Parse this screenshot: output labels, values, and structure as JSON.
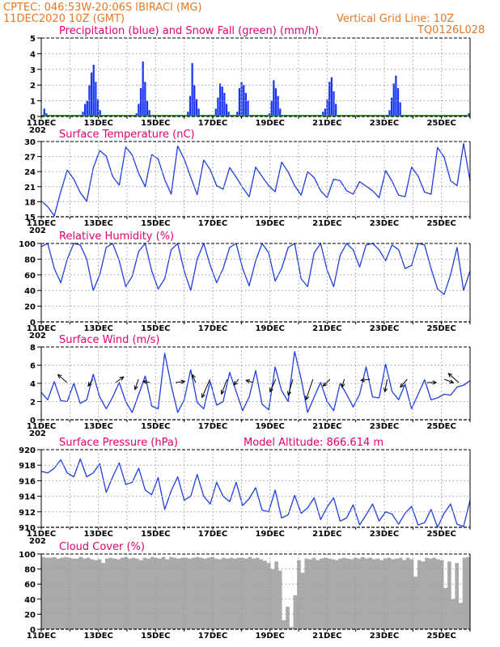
{
  "header": {
    "line1": "CPTEC:   046:53W-20:06S   IBIRACI (MG)",
    "line2": "11DEC2020 10Z (GMT)",
    "grid_note": "Vertical Grid Line: 10Z",
    "run_code": "TQ0126L028",
    "altitude_label": "Model Altitude: 866.614 m"
  },
  "colors": {
    "header": "#e87722",
    "title": "#e0006e",
    "series_blue": "#1f3fe0",
    "bars_blue": "#1a35f5",
    "snow_green": "#19a319",
    "cloud_gray": "#aaaaaa",
    "grid": "#9a9a9a"
  },
  "x_axis": {
    "day_labels": [
      "11DEC",
      "13DEC",
      "15DEC",
      "17DEC",
      "19DEC",
      "21DEC",
      "23DEC",
      "25DEC"
    ],
    "year_fragment": "202",
    "n_days": 15
  },
  "chart_data": [
    {
      "id": "precip",
      "type": "bar",
      "title": "Precipitation (blue) and Snow Fall (green) (mm/h)",
      "ylim": [
        0,
        5
      ],
      "yticks": [
        0,
        1,
        2,
        3,
        4,
        5
      ],
      "series": [
        {
          "name": "Precipitation",
          "color": "#1a35f5",
          "values": [
            0,
            0.5,
            0.2,
            0,
            0,
            0,
            0,
            0,
            0,
            0,
            0,
            0,
            0,
            0,
            0,
            0,
            0,
            0,
            0,
            0.3,
            0.8,
            1,
            2,
            2.8,
            3.3,
            2.2,
            1.1,
            0.4,
            0,
            0,
            0,
            0,
            0,
            0,
            0,
            0,
            0,
            0,
            0,
            0,
            0,
            0,
            0,
            0,
            0.2,
            0.8,
            1.8,
            3.5,
            2.2,
            1,
            0.4,
            0,
            0,
            0,
            0,
            0,
            0,
            0,
            0,
            0,
            0,
            0,
            0,
            0,
            0,
            0,
            0,
            0,
            0.3,
            1.3,
            3.4,
            2,
            1.1,
            0.5,
            0,
            0,
            0,
            0,
            0,
            0,
            0,
            0.5,
            1.2,
            2.1,
            1.9,
            1.5,
            0.8,
            0.3,
            0,
            0,
            0,
            0.3,
            1.8,
            2.2,
            2,
            1.5,
            1,
            0,
            0,
            0,
            0,
            0,
            0,
            0,
            0,
            0,
            0.2,
            1,
            2.3,
            1.8,
            1.3,
            0.5,
            0,
            0,
            0,
            0,
            0,
            0,
            0,
            0,
            0,
            0,
            0,
            0,
            0,
            0,
            0,
            0,
            0,
            0,
            0,
            0.3,
            0.5,
            1.1,
            2.2,
            2.5,
            1.6,
            0.8,
            0,
            0,
            0,
            0,
            0,
            0,
            0,
            0,
            0,
            0,
            0,
            0,
            0,
            0,
            0,
            0,
            0,
            0,
            0,
            0,
            0,
            0,
            0,
            0,
            0.4,
            1.2,
            2.1,
            2.6,
            1.8,
            0.9,
            0,
            0,
            0,
            0,
            0,
            0,
            0,
            0,
            0,
            0,
            0,
            0,
            0,
            0,
            0,
            0,
            0,
            0,
            0,
            0,
            0,
            0,
            0,
            0,
            0,
            0,
            0,
            0,
            0,
            0,
            0,
            0.2
          ]
        },
        {
          "name": "Snow Fall",
          "color": "#19a319",
          "values": [
            0,
            0,
            0,
            0,
            0,
            0,
            0,
            0,
            0,
            0,
            0,
            0,
            0,
            0,
            0
          ]
        }
      ]
    },
    {
      "id": "temp",
      "type": "line",
      "title": "Surface Temperature (nC)",
      "ylim": [
        15,
        30
      ],
      "yticks": [
        15,
        18,
        21,
        24,
        27,
        30
      ],
      "series": [
        {
          "name": "Temperature",
          "values": [
            18.2,
            17,
            15.2,
            20,
            24.3,
            22.5,
            19.8,
            18.1,
            24.7,
            28.2,
            27.1,
            23,
            21.3,
            28.9,
            27.3,
            23.6,
            21,
            27.4,
            26.5,
            22.4,
            19.5,
            29.1,
            26.5,
            22.9,
            19.4,
            26.3,
            24.4,
            21.2,
            20.5,
            24.8,
            22.9,
            20.8,
            19,
            24.9,
            23,
            21.2,
            20,
            25.9,
            23.9,
            21.2,
            19.3,
            24,
            22.8,
            20.2,
            18.8,
            22.5,
            22.2,
            20.2,
            19.5,
            22,
            21.1,
            20.2,
            18.8,
            24.2,
            22.1,
            19.3,
            19,
            24.9,
            23.1,
            19.9,
            19.5,
            28.8,
            26.9,
            22.2,
            21.2,
            29.6,
            22.1
          ]
        }
      ]
    },
    {
      "id": "rh",
      "type": "line",
      "title": "Relative Humidity (%)",
      "ylim": [
        0,
        100
      ],
      "yticks": [
        0,
        20,
        40,
        60,
        80,
        100
      ],
      "series": [
        {
          "name": "Relative Humidity",
          "values": [
            96,
            100,
            68,
            50,
            80,
            100,
            98,
            80,
            40,
            60,
            95,
            100,
            78,
            45,
            58,
            90,
            100,
            65,
            42,
            55,
            92,
            100,
            65,
            40,
            80,
            100,
            72,
            50,
            68,
            95,
            100,
            68,
            46,
            78,
            100,
            88,
            52,
            68,
            95,
            100,
            55,
            45,
            88,
            100,
            66,
            45,
            85,
            100,
            92,
            70,
            98,
            100,
            92,
            78,
            98,
            92,
            68,
            72,
            100,
            98,
            68,
            42,
            35,
            60,
            95,
            40,
            65
          ]
        }
      ]
    },
    {
      "id": "wind",
      "type": "line",
      "title": "Surface Wind (m/s)",
      "ylim": [
        0,
        8
      ],
      "yticks": [
        0,
        2,
        4,
        6,
        8
      ],
      "series": [
        {
          "name": "Wind speed",
          "values": [
            3,
            2.2,
            4.2,
            2.1,
            2,
            4,
            1.8,
            2.2,
            5,
            2.5,
            1.2,
            2.5,
            4.1,
            2,
            0.8,
            2.8,
            4.8,
            1.5,
            1.2,
            7.3,
            3.8,
            0.8,
            2.2,
            5.5,
            1.9,
            1.2,
            4.2,
            1.6,
            2,
            5.2,
            3.1,
            1,
            2.5,
            5.4,
            1.7,
            1.1,
            5.8,
            3.2,
            2,
            7.5,
            4.5,
            0.8,
            2.5,
            4.1,
            2,
            1,
            4,
            2.8,
            1.4,
            2.8,
            5.8,
            2.5,
            2.4,
            6.1,
            3.1,
            2.2,
            3.9,
            1.2,
            2.8,
            4.4,
            2.2,
            2.4,
            2.8,
            2.7,
            3.6,
            3.8,
            4.3
          ]
        }
      ],
      "arrows": [
        {
          "x": 0.9,
          "u": -0.8,
          "v": 0.7
        },
        {
          "x": 1.8,
          "u": -0.4,
          "v": -0.6
        },
        {
          "x": 2.6,
          "u": 0.7,
          "v": 0.5
        },
        {
          "x": 3.4,
          "u": -0.3,
          "v": -0.9
        },
        {
          "x": 3.8,
          "u": -0.6,
          "v": 0.1
        },
        {
          "x": 4.7,
          "u": 0.8,
          "v": 0.1
        },
        {
          "x": 5.4,
          "u": -0.3,
          "v": 0.7
        },
        {
          "x": 5.9,
          "u": -0.7,
          "v": -1.6
        },
        {
          "x": 6.5,
          "u": -0.5,
          "v": -1.3
        },
        {
          "x": 6.9,
          "u": -0.4,
          "v": -0.5
        },
        {
          "x": 7.4,
          "u": -0.6,
          "v": 0.2
        },
        {
          "x": 8.2,
          "u": -0.5,
          "v": -1.1
        },
        {
          "x": 8.8,
          "u": -0.4,
          "v": -1.4
        },
        {
          "x": 9.5,
          "u": -0.6,
          "v": -1.8
        },
        {
          "x": 10.1,
          "u": -0.6,
          "v": -0.6
        },
        {
          "x": 10.6,
          "u": -0.2,
          "v": -0.7
        },
        {
          "x": 11.5,
          "u": -0.8,
          "v": -0.1
        },
        {
          "x": 12.1,
          "u": -0.2,
          "v": -1.1
        },
        {
          "x": 12.8,
          "u": -0.6,
          "v": -0.7
        },
        {
          "x": 13.5,
          "u": 0.8,
          "v": 0
        },
        {
          "x": 14.1,
          "u": 0.8,
          "v": -0.3
        },
        {
          "x": 14.6,
          "u": -0.9,
          "v": 0.8
        }
      ]
    },
    {
      "id": "press",
      "type": "line",
      "title": "Surface Pressure (hPa)",
      "ylim": [
        910,
        920
      ],
      "yticks": [
        910,
        912,
        914,
        916,
        918,
        920
      ],
      "series": [
        {
          "name": "Surface Pressure",
          "values": [
            917.2,
            917,
            917.6,
            918.7,
            917,
            916.5,
            918.8,
            916.5,
            917,
            918.2,
            914.5,
            916.5,
            918.3,
            915.5,
            915.8,
            917.6,
            914.8,
            914.2,
            916.4,
            912.3,
            914.7,
            916.5,
            913.5,
            914,
            916.8,
            914,
            913,
            915.8,
            914,
            913.3,
            915.8,
            912.8,
            913.7,
            915.1,
            912.2,
            912,
            914.8,
            911.2,
            911.6,
            914.1,
            911.8,
            912.5,
            913.8,
            911,
            912.6,
            913.8,
            910.8,
            911.2,
            912.9,
            910.3,
            911.6,
            913,
            910.8,
            912,
            911.7,
            910.4,
            911.8,
            912.7,
            910.3,
            910.6,
            912.3,
            910,
            911.8,
            913,
            910.4,
            910.1,
            913.5
          ]
        }
      ]
    },
    {
      "id": "cloud",
      "type": "area",
      "title": "Cloud Cover (%)",
      "ylim": [
        0,
        100
      ],
      "yticks": [
        0,
        20,
        40,
        60,
        80,
        100
      ],
      "series": [
        {
          "name": "Cloud Cover",
          "values": [
            96,
            95,
            95,
            96,
            94,
            95,
            96,
            95,
            94,
            94,
            96,
            94,
            95,
            93,
            92,
            93,
            88,
            94,
            95,
            94,
            93,
            95,
            96,
            94,
            95,
            94,
            92,
            95,
            94,
            96,
            95,
            94,
            96,
            93,
            96,
            95,
            94,
            95,
            95,
            94,
            95,
            96,
            95,
            94,
            95,
            96,
            94,
            93,
            95,
            94,
            95,
            94,
            95,
            95,
            94,
            96,
            94,
            95,
            93,
            91,
            88,
            80,
            90,
            78,
            12,
            30,
            3,
            45,
            92,
            75,
            94,
            93,
            95,
            92,
            94,
            95,
            94,
            93,
            92,
            94,
            95,
            94,
            93,
            95,
            94,
            96,
            94,
            95,
            93,
            94,
            92,
            94,
            95,
            93,
            94,
            95,
            92,
            95,
            93,
            70,
            92,
            90,
            95,
            94,
            95,
            93,
            92,
            55,
            90,
            40,
            88,
            35,
            95,
            96
          ]
        }
      ]
    }
  ]
}
